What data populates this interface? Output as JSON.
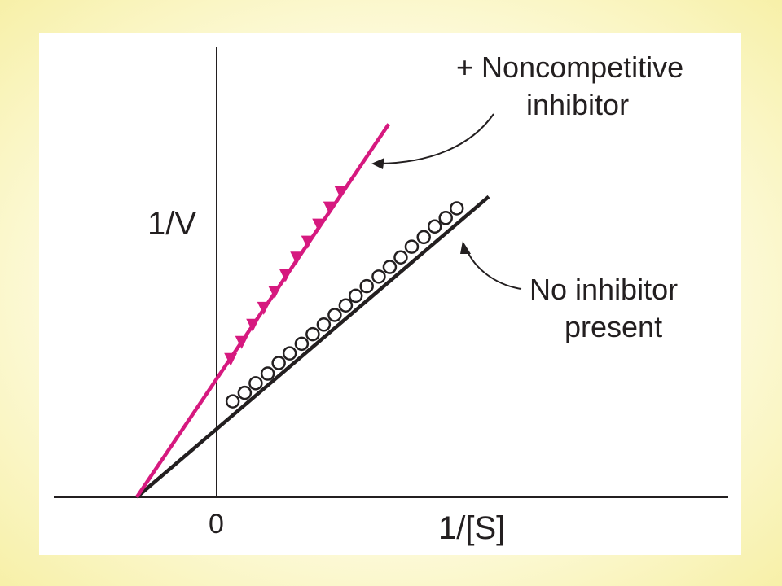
{
  "chart_data": {
    "type": "line",
    "title": "",
    "xlabel": "1/[S]",
    "ylabel": "1/V",
    "x_tick_labels": [
      "0"
    ],
    "xlim": [
      -1.0,
      4.35
    ],
    "ylim": [
      0,
      4.3
    ],
    "grid": false,
    "series": [
      {
        "name": "+ Noncompetitive inhibitor",
        "color": "#d6197f",
        "marker": "filled-triangle",
        "line_x": [
          -0.8,
          1.72
        ],
        "line_y": [
          0,
          3.5
        ],
        "points": [
          {
            "x": 0.14,
            "y": 1.3
          },
          {
            "x": 0.25,
            "y": 1.46
          },
          {
            "x": 0.36,
            "y": 1.62
          },
          {
            "x": 0.47,
            "y": 1.78
          },
          {
            "x": 0.58,
            "y": 1.93
          },
          {
            "x": 0.69,
            "y": 2.09
          },
          {
            "x": 0.8,
            "y": 2.25
          },
          {
            "x": 0.91,
            "y": 2.4
          },
          {
            "x": 1.02,
            "y": 2.56
          },
          {
            "x": 1.13,
            "y": 2.72
          },
          {
            "x": 1.24,
            "y": 2.87
          }
        ]
      },
      {
        "name": "No inhibitor present",
        "color": "#231f20",
        "marker": "open-circle",
        "line_x": [
          -0.8,
          2.72
        ],
        "line_y": [
          0,
          2.82
        ],
        "points": [
          {
            "x": 0.16,
            "y": 0.9
          },
          {
            "x": 0.28,
            "y": 0.98
          },
          {
            "x": 0.39,
            "y": 1.07
          },
          {
            "x": 0.51,
            "y": 1.16
          },
          {
            "x": 0.62,
            "y": 1.26
          },
          {
            "x": 0.73,
            "y": 1.35
          },
          {
            "x": 0.85,
            "y": 1.44
          },
          {
            "x": 0.96,
            "y": 1.53
          },
          {
            "x": 1.07,
            "y": 1.62
          },
          {
            "x": 1.18,
            "y": 1.71
          },
          {
            "x": 1.29,
            "y": 1.8
          },
          {
            "x": 1.39,
            "y": 1.89
          },
          {
            "x": 1.5,
            "y": 1.98
          },
          {
            "x": 1.62,
            "y": 2.07
          },
          {
            "x": 1.73,
            "y": 2.16
          },
          {
            "x": 1.84,
            "y": 2.25
          },
          {
            "x": 1.95,
            "y": 2.35
          },
          {
            "x": 2.07,
            "y": 2.44
          },
          {
            "x": 2.18,
            "y": 2.54
          },
          {
            "x": 2.29,
            "y": 2.62
          },
          {
            "x": 2.4,
            "y": 2.71
          }
        ]
      }
    ],
    "annotations": [
      {
        "target": "+ Noncompetitive inhibitor",
        "lines": [
          "+ Noncompetitive",
          "inhibitor"
        ]
      },
      {
        "target": "No inhibitor present",
        "lines": [
          "No inhibitor",
          "present"
        ]
      }
    ]
  }
}
